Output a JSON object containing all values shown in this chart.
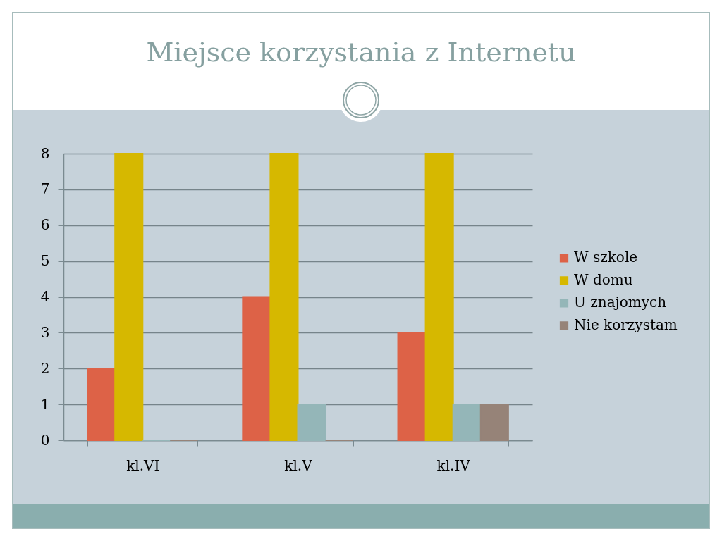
{
  "chart_data": {
    "type": "bar",
    "title": "Miejsce korzystania z Internetu",
    "categories": [
      "kl.VI",
      "kl.V",
      "kl.IV"
    ],
    "series": [
      {
        "name": "W szkole",
        "color": "#dd6247",
        "values": [
          2,
          4,
          3
        ]
      },
      {
        "name": "W domu",
        "color": "#d6b800",
        "values": [
          8,
          8,
          8
        ]
      },
      {
        "name": "U znajomych",
        "color": "#94b6b8",
        "values": [
          0,
          1,
          1
        ]
      },
      {
        "name": "Nie korzystam",
        "color": "#968378",
        "values": [
          0,
          0,
          1
        ]
      }
    ],
    "ylim": [
      0,
      8
    ],
    "yticks": [
      0,
      1,
      2,
      3,
      4,
      5,
      6,
      7,
      8
    ],
    "grid": "y",
    "legend": "right"
  }
}
